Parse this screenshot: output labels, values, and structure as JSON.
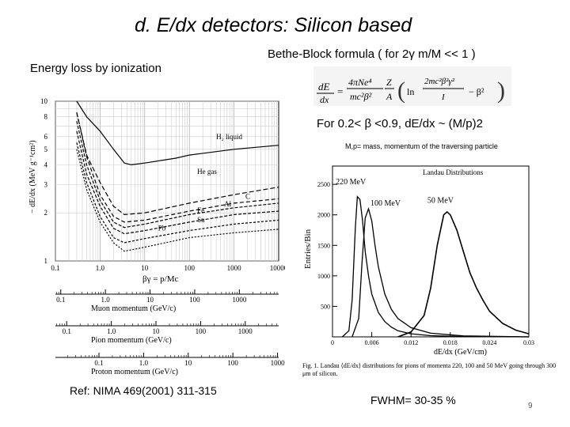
{
  "slide": {
    "title": "d. E/dx detectors: Silicon based",
    "left_subtitle": "Energy loss by ionization",
    "bethe_bloch": "Bethe-Block formula ( for 2γ m/M << 1 )",
    "condition": "For 0.2< β <0.9, dE/dx ~ (M/p)2",
    "mp_note": "M,p= mass, momentum of the traversing particle",
    "formula": "dE/dx = (4πNe⁴/mc²β²)·(Z/A)·[ ln(2mc²β²γ²/I) − β² ]",
    "reference": "Ref: NIMA 469(2001) 311-315",
    "fwhm": "FWHM= 30-35 %",
    "page_number": "9"
  },
  "left_plot": {
    "ylabel": "− dE/dx (MeV g⁻¹cm²)",
    "xlabel": "βγ = p/Mc",
    "y_ticks": [
      "10",
      "8",
      "6",
      "5",
      "4",
      "3",
      "2",
      "1"
    ],
    "x_ticks": [
      "0.1",
      "1.0",
      "10",
      "100",
      "1000",
      "10000"
    ],
    "curve_labels": [
      "H₂ liquid",
      "He gas",
      "C",
      "Al",
      "Fe",
      "Sn",
      "Pb"
    ],
    "axes": [
      {
        "label": "Muon momentum (GeV/c)",
        "ticks": [
          "0.1",
          "1.0",
          "10",
          "100",
          "1000"
        ]
      },
      {
        "label": "Pion momentum (GeV/c)",
        "ticks": [
          "0.1",
          "1.0",
          "10",
          "100",
          "1000"
        ]
      },
      {
        "label": "Proton momentum (GeV/c)",
        "ticks": [
          "0.1",
          "1.0",
          "10",
          "100",
          "1000",
          "10000"
        ]
      }
    ]
  },
  "right_plot": {
    "title": "Landau Distributions",
    "ylabel": "Entries/Bin",
    "xlabel": "dE/dx (GeV/cm)",
    "y_ticks": [
      "2500",
      "2000",
      "1500",
      "1000",
      "500"
    ],
    "x_ticks": [
      "0",
      "0.006",
      "0.012",
      "0.018",
      "0.024",
      "0.03"
    ],
    "peak_labels": [
      "220 MeV",
      "100 MeV",
      "50 MeV"
    ],
    "caption": "Fig. 1. Landau ⟨dE/dx⟩ distributions for pions of momenta 220, 100 and 50 MeV going through 300 μm of silicon."
  },
  "chart_data": [
    {
      "type": "line",
      "title": "",
      "xlabel": "βγ = p/Mc",
      "ylabel": "− dE/dx (MeV g⁻¹cm²)",
      "xscale": "log",
      "yscale": "log",
      "xlim": [
        0.1,
        10000
      ],
      "ylim": [
        1,
        10
      ],
      "series": [
        {
          "name": "H₂ liquid",
          "x": [
            0.3,
            0.5,
            1,
            2,
            3.5,
            5,
            10,
            50,
            100,
            1000,
            10000
          ],
          "y": [
            10,
            8,
            6.5,
            5.0,
            4.1,
            4.0,
            4.1,
            4.4,
            4.6,
            5.0,
            5.3
          ]
        },
        {
          "name": "He gas",
          "x": [
            0.3,
            0.5,
            1,
            2,
            3.5,
            10,
            100,
            1000,
            10000
          ],
          "y": [
            8.5,
            4.6,
            3.1,
            2.2,
            1.95,
            2.0,
            2.3,
            2.6,
            2.9
          ]
        },
        {
          "name": "C",
          "x": [
            0.3,
            0.5,
            1,
            2,
            3.5,
            10,
            100,
            1000,
            10000
          ],
          "y": [
            8.5,
            4.5,
            2.6,
            1.9,
            1.75,
            1.8,
            2.05,
            2.3,
            2.45
          ]
        },
        {
          "name": "Al",
          "x": [
            0.3,
            0.5,
            1,
            2,
            3.5,
            10,
            100,
            1000,
            10000
          ],
          "y": [
            7.5,
            4.0,
            2.4,
            1.75,
            1.62,
            1.7,
            1.95,
            2.15,
            2.3
          ]
        },
        {
          "name": "Fe",
          "x": [
            0.3,
            0.5,
            1,
            2,
            3.5,
            10,
            100,
            1000,
            10000
          ],
          "y": [
            6.5,
            3.5,
            2.2,
            1.6,
            1.48,
            1.55,
            1.75,
            1.95,
            2.05
          ]
        },
        {
          "name": "Sn",
          "x": [
            0.3,
            0.5,
            1,
            2,
            3.5,
            10,
            100,
            1000,
            10000
          ],
          "y": [
            5.5,
            3.1,
            1.9,
            1.4,
            1.3,
            1.38,
            1.55,
            1.7,
            1.8
          ]
        },
        {
          "name": "Pb",
          "x": [
            0.3,
            0.5,
            1,
            2,
            3.5,
            10,
            100,
            1000,
            10000
          ],
          "y": [
            5.0,
            2.8,
            1.75,
            1.3,
            1.15,
            1.22,
            1.4,
            1.5,
            1.58
          ]
        }
      ]
    },
    {
      "type": "line",
      "title": "Landau Distributions",
      "xlabel": "dE/dx (GeV/cm)",
      "ylabel": "Entries/Bin",
      "xlim": [
        0,
        0.03
      ],
      "ylim": [
        0,
        2800
      ],
      "series": [
        {
          "name": "220 MeV",
          "x": [
            0.0015,
            0.0025,
            0.003,
            0.0035,
            0.0038,
            0.0042,
            0.0046,
            0.005,
            0.0055,
            0.006,
            0.007,
            0.008,
            0.009,
            0.01,
            0.012,
            0.015,
            0.02,
            0.03
          ],
          "y": [
            0,
            100,
            600,
            1800,
            2300,
            2250,
            1900,
            1400,
            1000,
            700,
            400,
            250,
            160,
            100,
            50,
            20,
            5,
            0
          ]
        },
        {
          "name": "100 MeV",
          "x": [
            0.003,
            0.004,
            0.0045,
            0.005,
            0.0055,
            0.006,
            0.0065,
            0.007,
            0.008,
            0.009,
            0.01,
            0.012,
            0.015,
            0.02,
            0.03
          ],
          "y": [
            0,
            300,
            1200,
            1950,
            2100,
            1900,
            1500,
            1150,
            700,
            450,
            300,
            150,
            60,
            15,
            0
          ]
        },
        {
          "name": "50 MeV",
          "x": [
            0.01,
            0.012,
            0.014,
            0.015,
            0.016,
            0.017,
            0.0175,
            0.018,
            0.019,
            0.02,
            0.021,
            0.022,
            0.023,
            0.024,
            0.026,
            0.028,
            0.03
          ],
          "y": [
            0,
            80,
            350,
            800,
            1500,
            2000,
            2050,
            2000,
            1750,
            1400,
            1050,
            800,
            600,
            420,
            220,
            110,
            50
          ]
        }
      ]
    }
  ]
}
